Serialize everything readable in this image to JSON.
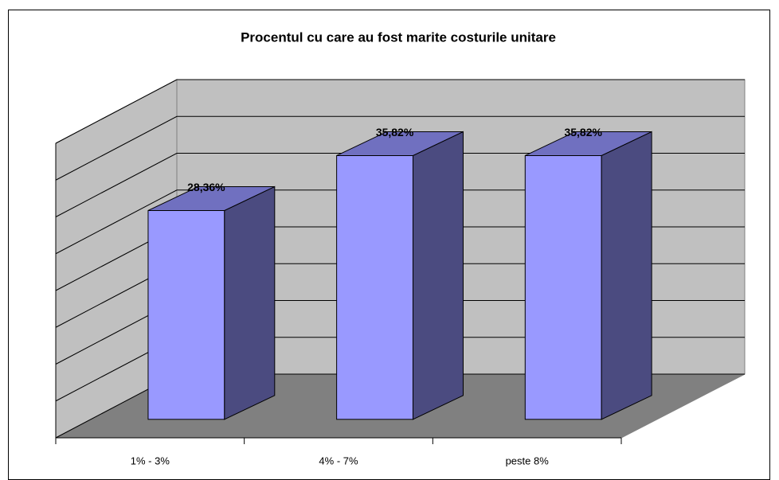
{
  "chart_data": {
    "type": "bar3d",
    "title": "Procentul cu care au fost marite costurile unitare",
    "categories": [
      "1% - 3%",
      "4% - 7%",
      "peste 8%"
    ],
    "values": [
      28.36,
      35.82,
      35.82
    ],
    "value_labels": [
      "28,36%",
      "35,82%",
      "35,82%"
    ],
    "color": "#9999ff",
    "ylim": [
      0,
      40
    ],
    "yticks": [
      0,
      5,
      10,
      15,
      20,
      25,
      30,
      35,
      40
    ],
    "grid": true
  }
}
